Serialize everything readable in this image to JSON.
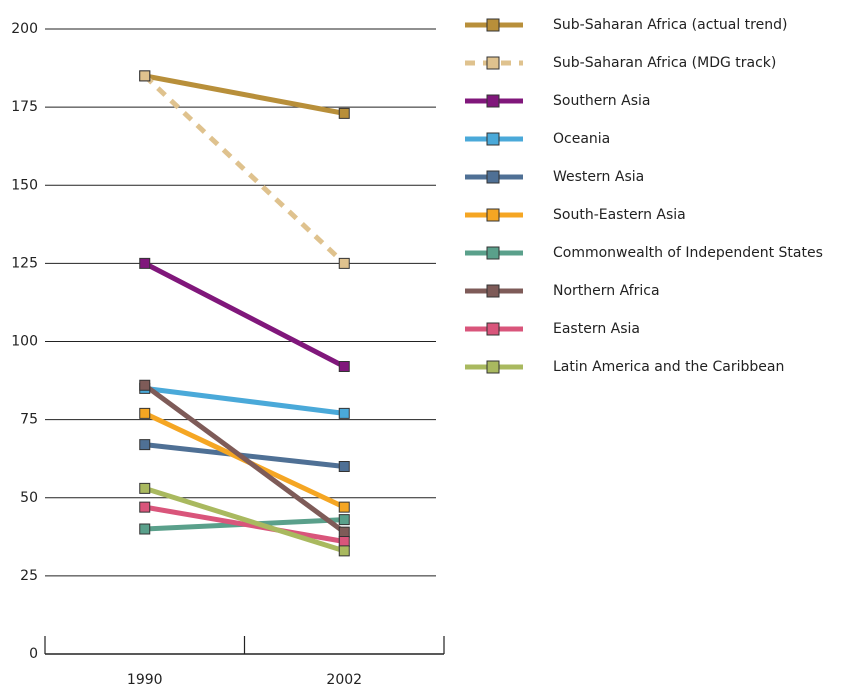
{
  "chart_data": {
    "type": "line",
    "categories": [
      "1990",
      "2002"
    ],
    "ylim": [
      0,
      200
    ],
    "yticks": [
      0,
      25,
      50,
      75,
      100,
      125,
      150,
      175,
      200
    ],
    "grid": true,
    "legend": "right",
    "series": [
      {
        "name": "Sub-Saharan Africa (actual trend)",
        "color": "#b88f3a",
        "values": [
          185,
          173
        ]
      },
      {
        "name": "Sub-Saharan Africa (MDG track)",
        "color": "#dfc28e",
        "dashed": true,
        "values": [
          185,
          125
        ]
      },
      {
        "name": "Southern Asia",
        "color": "#80177b",
        "values": [
          125,
          92
        ]
      },
      {
        "name": "Oceania",
        "color": "#4aa9d9",
        "values": [
          85,
          77
        ]
      },
      {
        "name": "Western Asia",
        "color": "#4f7095",
        "values": [
          67,
          60
        ]
      },
      {
        "name": "South-Eastern Asia",
        "color": "#f5a623",
        "values": [
          77,
          47
        ]
      },
      {
        "name": "Commonwealth of Independent States",
        "color": "#5aa08b",
        "values": [
          40,
          43
        ]
      },
      {
        "name": "Northern Africa",
        "color": "#7e5b58",
        "values": [
          86,
          39
        ]
      },
      {
        "name": "Eastern Asia",
        "color": "#d9557b",
        "values": [
          47,
          36
        ]
      },
      {
        "name": "Latin America and the Caribbean",
        "color": "#a9b95f",
        "values": [
          53,
          33
        ]
      }
    ]
  }
}
